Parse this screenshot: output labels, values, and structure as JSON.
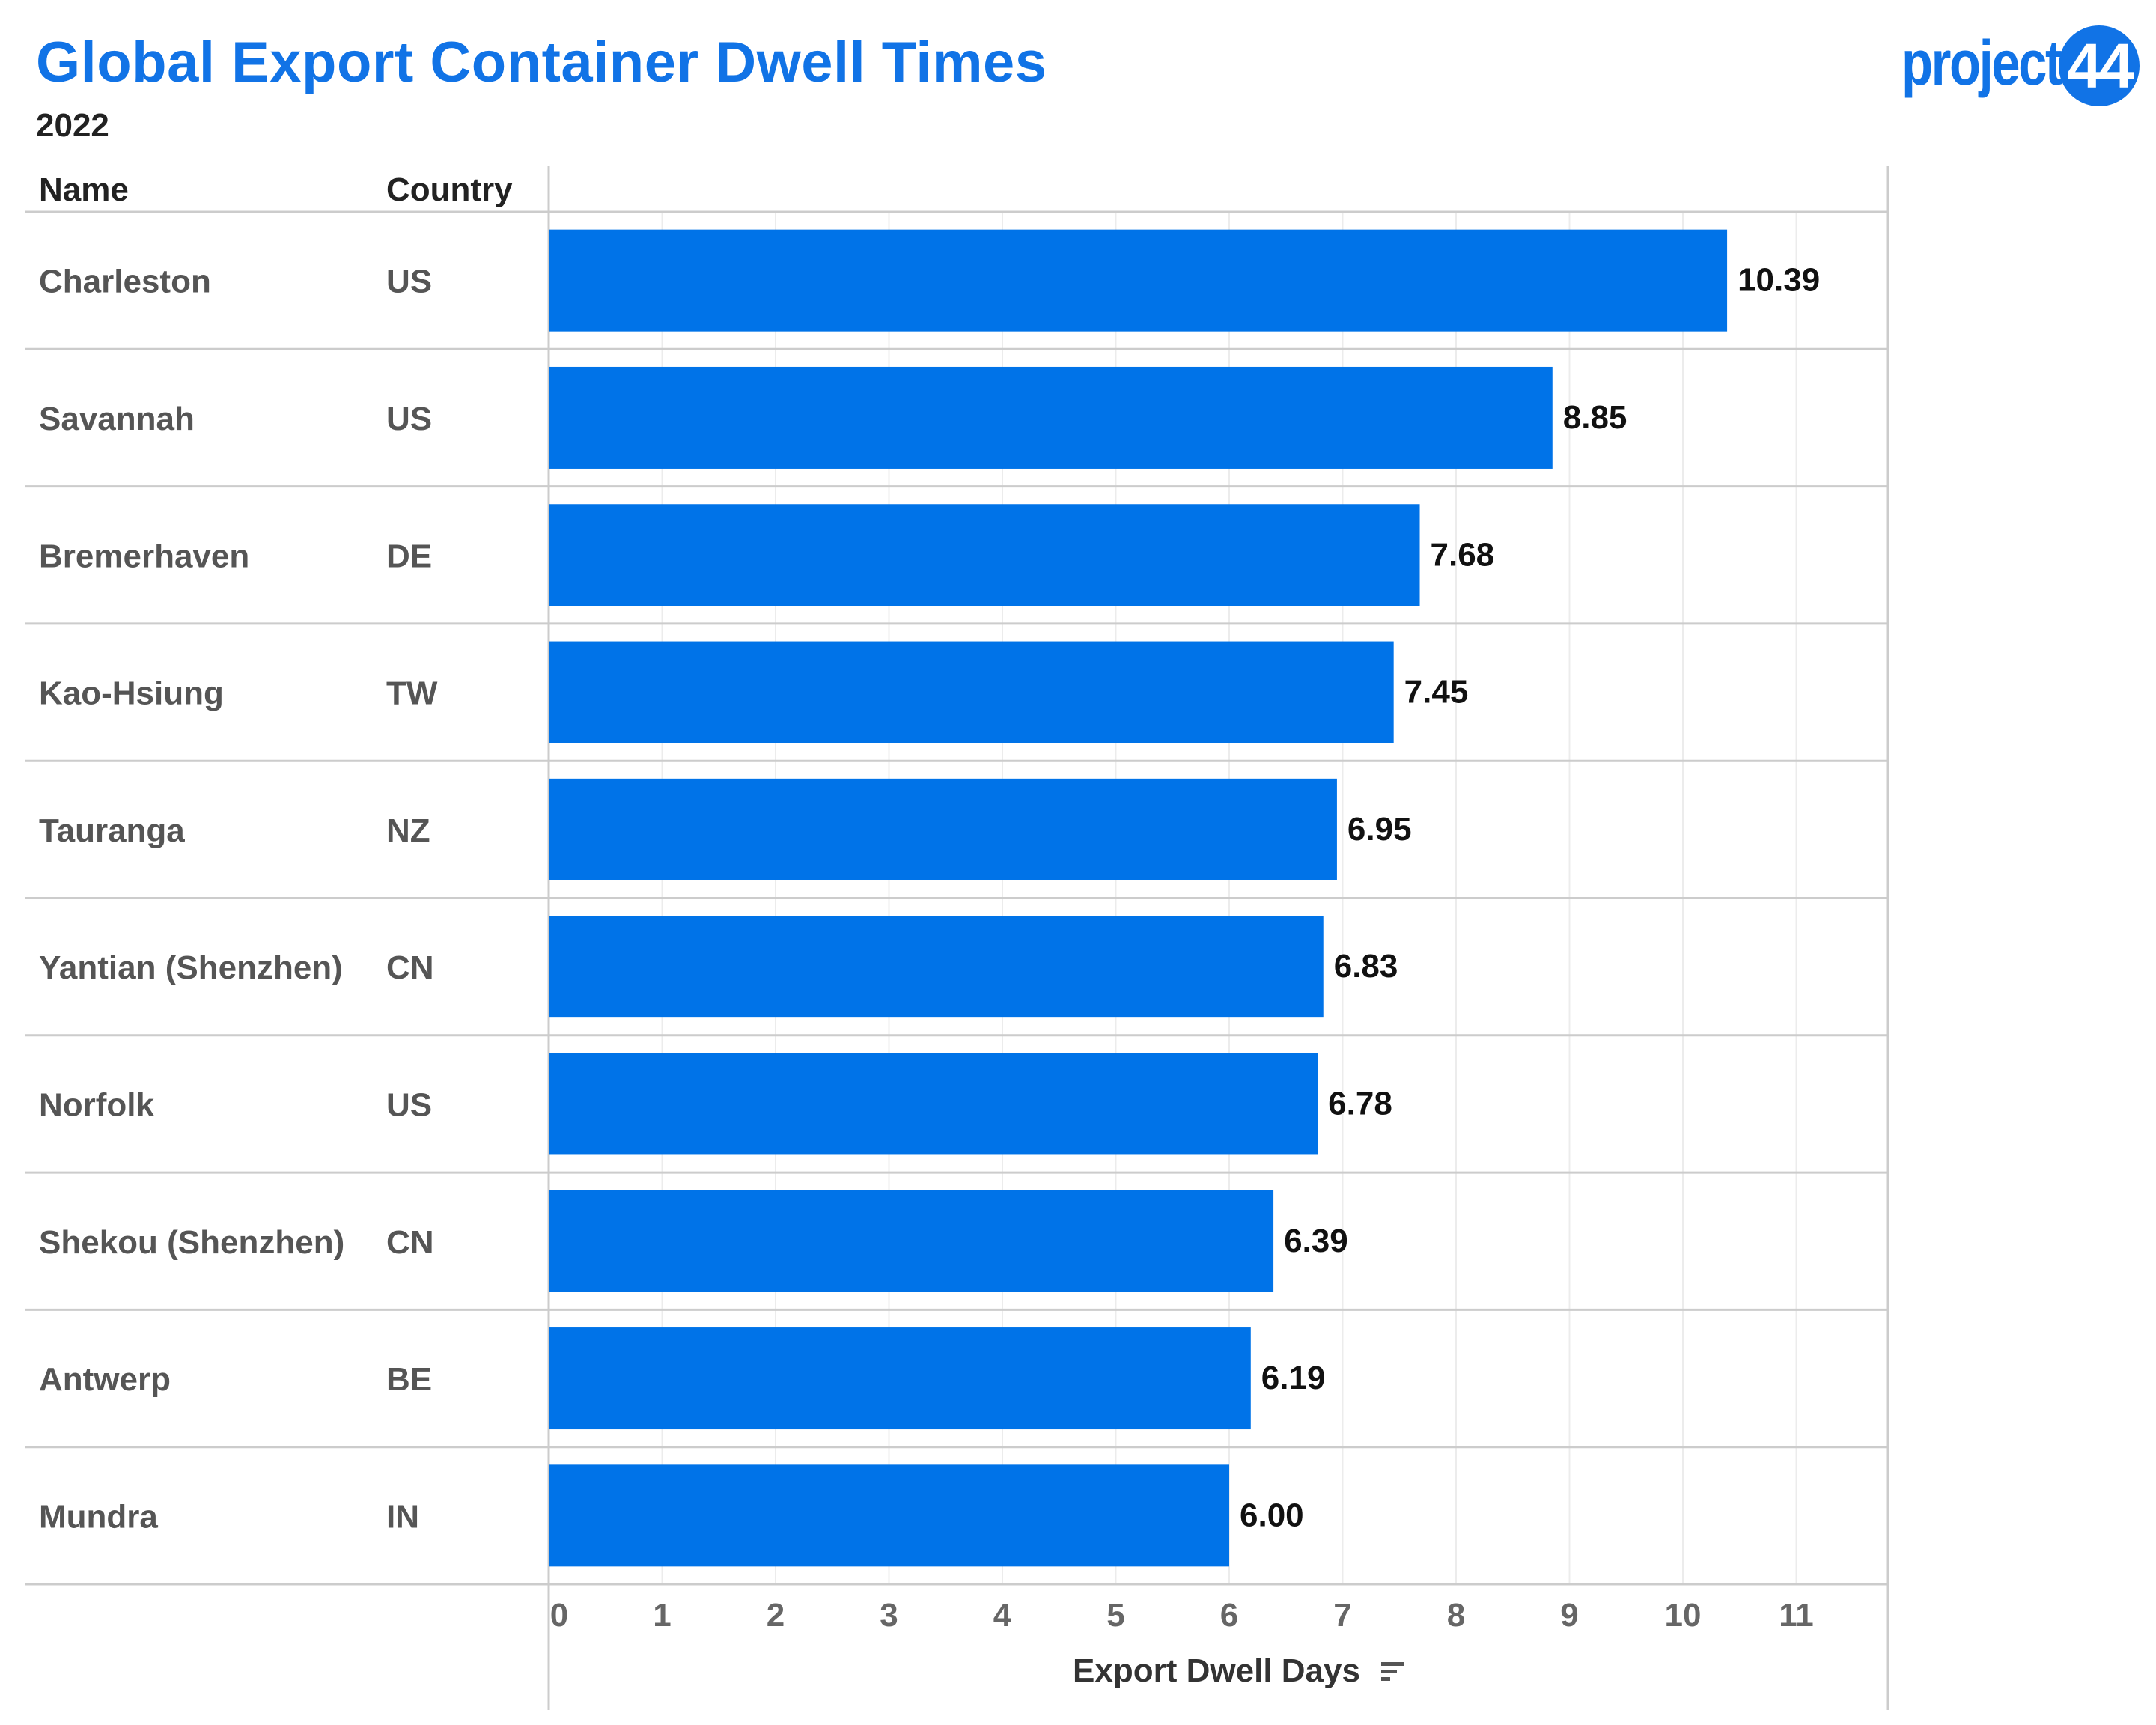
{
  "title": "Global Export Container Dwell Times",
  "subtitle": "2022",
  "logo": {
    "text": "project",
    "badge": "44"
  },
  "columns": {
    "name": "Name",
    "country": "Country"
  },
  "colors": {
    "bar": "#0073e8",
    "title": "#1173e6",
    "grid": "#ececec",
    "rule": "#cccccc"
  },
  "chart_data": {
    "type": "bar",
    "orientation": "horizontal",
    "categories": [
      "Charleston",
      "Savannah",
      "Bremerhaven",
      "Kao-Hsiung",
      "Tauranga",
      "Yantian (Shenzhen)",
      "Norfolk",
      "Shekou (Shenzhen)",
      "Antwerp",
      "Mundra"
    ],
    "countries": [
      "US",
      "US",
      "DE",
      "TW",
      "NZ",
      "CN",
      "US",
      "CN",
      "BE",
      "IN"
    ],
    "values": [
      10.39,
      8.85,
      7.68,
      7.45,
      6.95,
      6.83,
      6.78,
      6.39,
      6.19,
      6.0
    ],
    "value_labels": [
      "10.39",
      "8.85",
      "7.68",
      "7.45",
      "6.95",
      "6.83",
      "6.78",
      "6.39",
      "6.19",
      "6.00"
    ],
    "xlabel": "Export Dwell Days",
    "xticks": [
      0,
      1,
      2,
      3,
      4,
      5,
      6,
      7,
      8,
      9,
      10,
      11
    ],
    "xlim": [
      0,
      11.8
    ],
    "grid": true,
    "sorted": "descending"
  }
}
